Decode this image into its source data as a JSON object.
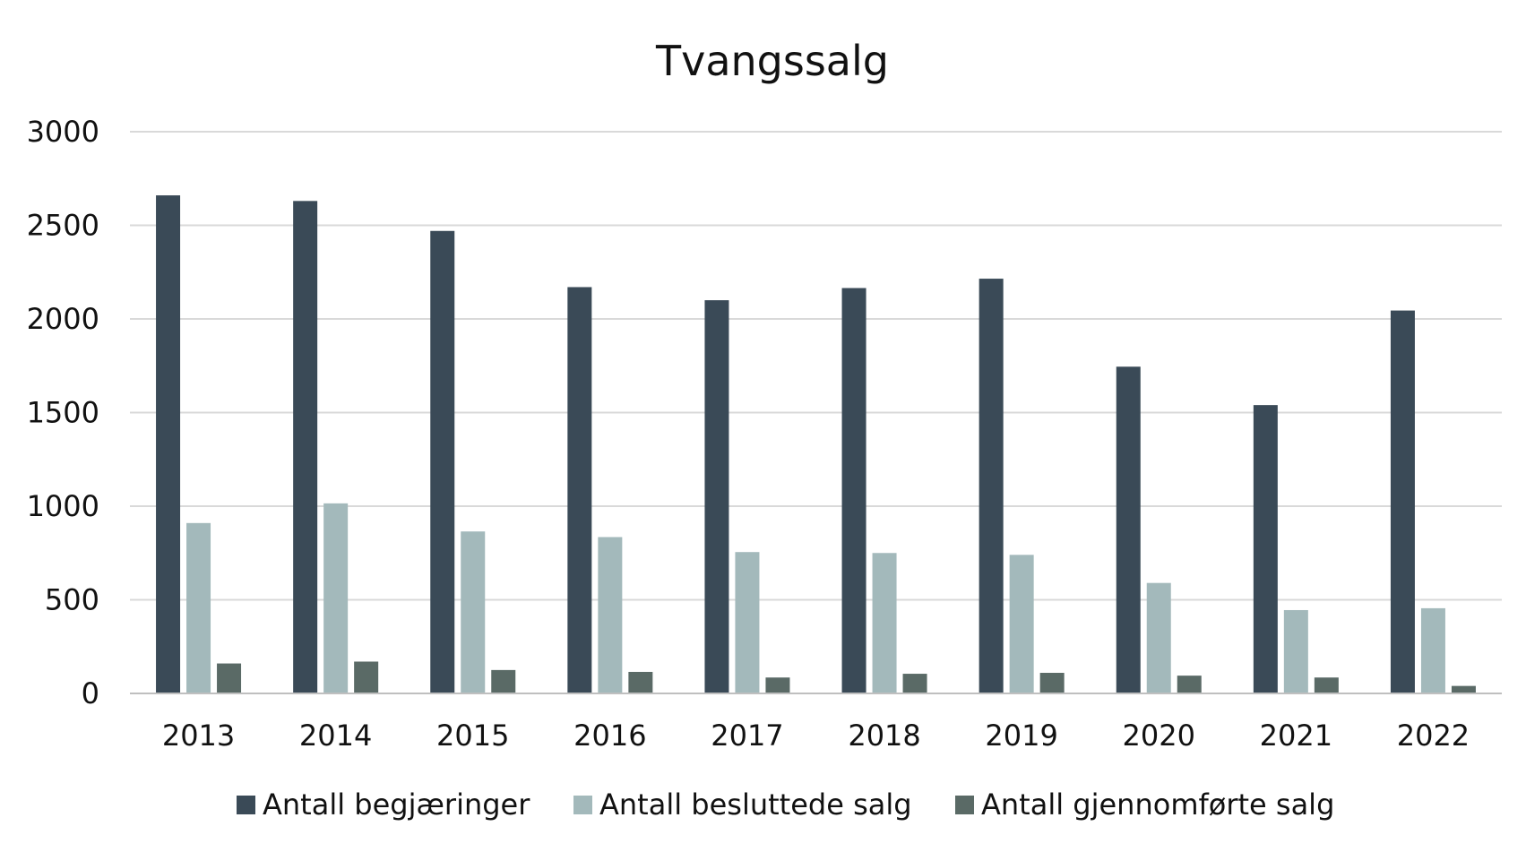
{
  "chart_data": {
    "type": "bar",
    "title": "Tvangssalg",
    "xlabel": "",
    "ylabel": "",
    "ylim": [
      0,
      3000
    ],
    "yticks": [
      0,
      500,
      1000,
      1500,
      2000,
      2500,
      3000
    ],
    "grid": true,
    "legend_position": "bottom",
    "categories": [
      "2013",
      "2014",
      "2015",
      "2016",
      "2017",
      "2018",
      "2019",
      "2020",
      "2021",
      "2022"
    ],
    "series": [
      {
        "name": "Antall begjæringer",
        "color": "#3a4a57",
        "values": [
          2660,
          2630,
          2470,
          2170,
          2100,
          2165,
          2215,
          1745,
          1540,
          2045
        ]
      },
      {
        "name": "Antall besluttede salg",
        "color": "#a3b9bb",
        "values": [
          910,
          1015,
          865,
          835,
          755,
          750,
          740,
          590,
          445,
          455
        ]
      },
      {
        "name": "Antall gjennomførte salg",
        "color": "#5a6a66",
        "values": [
          160,
          170,
          125,
          115,
          85,
          105,
          110,
          95,
          85,
          40
        ]
      }
    ]
  }
}
